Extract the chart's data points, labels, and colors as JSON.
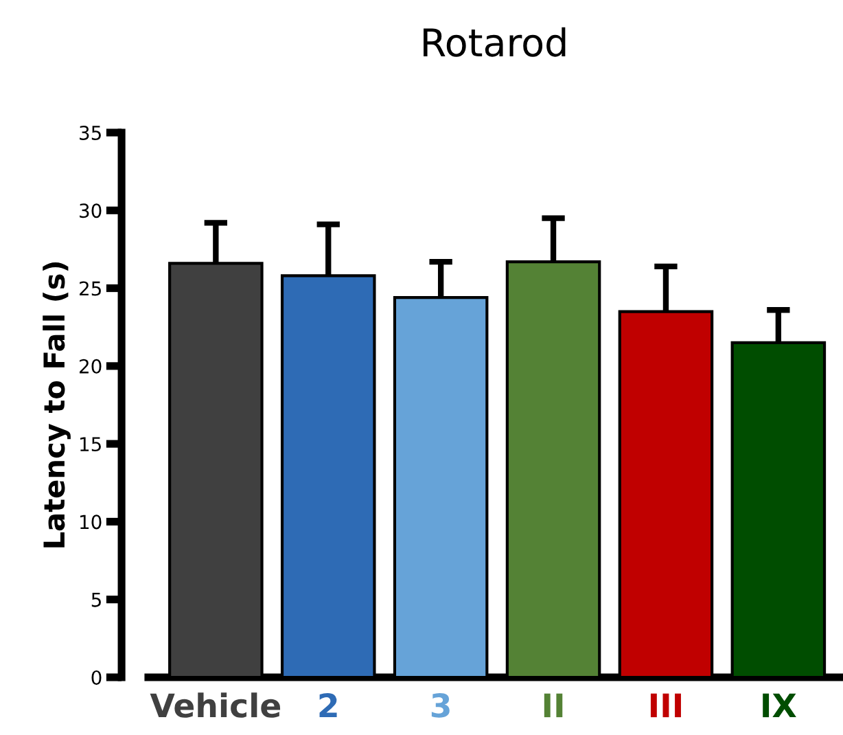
{
  "chart_data": {
    "type": "bar",
    "title": "Rotarod",
    "ylabel": "Latency to Fall (s)",
    "categories": [
      "Vehicle",
      "2",
      "3",
      "II",
      "III",
      "IX"
    ],
    "values": [
      26.6,
      25.8,
      24.4,
      26.7,
      23.5,
      21.5
    ],
    "errors": [
      2.6,
      3.3,
      2.3,
      2.8,
      2.9,
      2.1
    ],
    "colors": [
      "#404040",
      "#2e6bb5",
      "#66a3d8",
      "#548235",
      "#c00000",
      "#004d00"
    ],
    "ylim": [
      0,
      35
    ],
    "yticks": [
      0,
      5,
      10,
      15,
      20,
      25,
      30,
      35
    ],
    "grid": false,
    "legend": false
  }
}
